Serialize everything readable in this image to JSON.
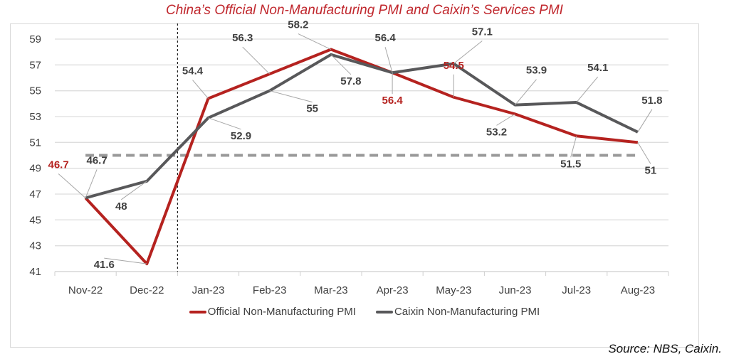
{
  "chart_data": {
    "type": "line",
    "title": "China’s Official Non-Manufacturing PMI and Caixin’s Services PMI",
    "xlabel": "",
    "ylabel": "",
    "categories": [
      "Nov-22",
      "Dec-22",
      "Jan-23",
      "Feb-23",
      "Mar-23",
      "Apr-23",
      "May-23",
      "Jun-23",
      "Jul-23",
      "Aug-23"
    ],
    "ylim": [
      41,
      59
    ],
    "yticks": [
      "41",
      "43",
      "45",
      "47",
      "49",
      "51",
      "53",
      "55",
      "57",
      "59"
    ],
    "grid": true,
    "legend_position": "bottom",
    "series": [
      {
        "name": "Official Non-Manufacturing PMI",
        "color": "#b5221f",
        "values": [
          46.7,
          41.6,
          54.4,
          56.3,
          58.2,
          56.4,
          54.5,
          53.2,
          51.5,
          51
        ],
        "labels": [
          "46.7",
          "41.6",
          "54.4",
          "56.3",
          "58.2",
          "56.4",
          "54.5",
          "53.2",
          "51.5",
          "51"
        ]
      },
      {
        "name": "Caixin Non-Manufacturing PMI",
        "color": "#58585a",
        "values": [
          46.7,
          48,
          52.9,
          55,
          57.8,
          56.4,
          57.1,
          53.9,
          54.1,
          51.8
        ],
        "labels": [
          "46.7",
          "48",
          "52.9",
          "55",
          "57.8",
          "56.4",
          "57.1",
          "53.9",
          "54.1",
          "51.8"
        ]
      }
    ],
    "reference_line": {
      "value": 50,
      "style": "dashed",
      "color": "#999999"
    },
    "divider_between": [
      "Dec-22",
      "Jan-23"
    ]
  },
  "source": "Source: NBS, Caixin."
}
